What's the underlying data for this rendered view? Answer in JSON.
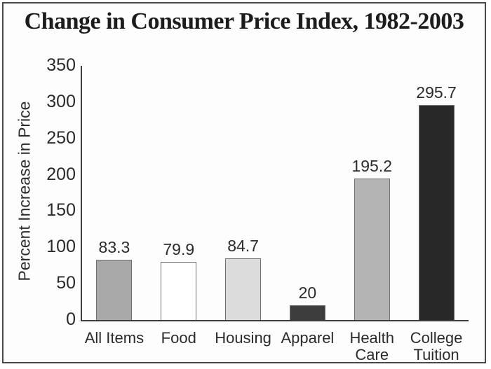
{
  "chart_data": {
    "type": "bar",
    "title": "Change in Consumer Price Index, 1982-2003",
    "categories": [
      "All Items",
      "Food",
      "Housing",
      "Apparel",
      "Health\nCare",
      "College\nTuition"
    ],
    "values": [
      83.3,
      79.9,
      84.7,
      20,
      195.2,
      295.7
    ],
    "bar_colors": [
      "#a9a9a9",
      "#ffffff",
      "#dcdcdc",
      "#3d3d3d",
      "#b4b4b4",
      "#282828"
    ],
    "xlabel": "",
    "ylabel": "Percent Increase in Price",
    "ylim": [
      0,
      350
    ],
    "yticks": [
      0,
      50,
      100,
      150,
      200,
      250,
      300,
      350
    ],
    "grid": false,
    "legend": "none",
    "axis_color": "#3d3d3d",
    "frame_border_color": "#4a4a4a",
    "text_color": "#2b2b2b"
  }
}
